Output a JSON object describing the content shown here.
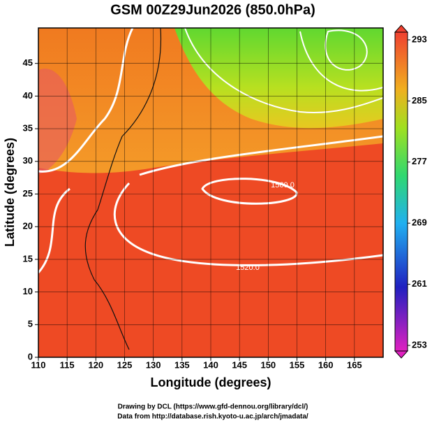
{
  "title": "GSM 00Z29Jun2026 (850.0hPa)",
  "map": {
    "xlabel": "Longitude (degrees)",
    "ylabel": "Latitude  (degrees)",
    "xlim": [
      110,
      170
    ],
    "ylim": [
      0,
      50
    ],
    "xticks": [
      110,
      115,
      120,
      125,
      130,
      135,
      140,
      145,
      150,
      155,
      160,
      165
    ],
    "yticks": [
      0,
      5,
      10,
      15,
      20,
      25,
      30,
      35,
      40,
      45
    ],
    "contour_labels": [
      "1520.0",
      "1560.0"
    ]
  },
  "colorbar": {
    "lim": [
      253,
      293
    ],
    "ticks": [
      253,
      261,
      269,
      277,
      285,
      293
    ]
  },
  "footer": [
    "Drawing by DCL (https://www.gfd-dennou.org/library/dcl/)",
    "Data from http://database.rish.kyoto-u.ac.jp/arch/jmadata/"
  ]
}
